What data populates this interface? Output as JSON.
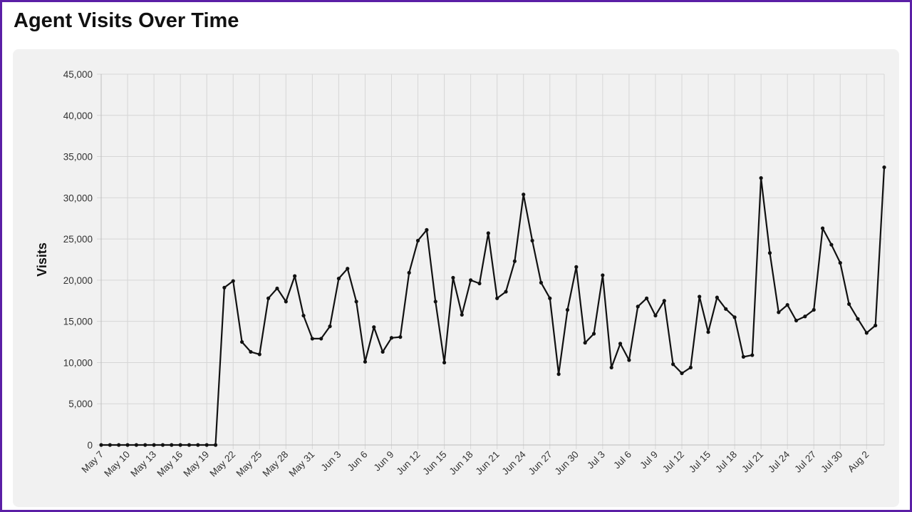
{
  "header": {
    "title": "Agent Visits Over Time"
  },
  "chart_data": {
    "type": "line",
    "title": "Agent Visits Over Time",
    "xlabel": "",
    "ylabel": "Visits",
    "ylim": [
      0,
      45000
    ],
    "yticks": [
      0,
      5000,
      10000,
      15000,
      20000,
      25000,
      30000,
      35000,
      40000,
      45000
    ],
    "ytick_labels": [
      "0",
      "5,000",
      "10,000",
      "15,000",
      "20,000",
      "25,000",
      "30,000",
      "35,000",
      "40,000",
      "45,000"
    ],
    "x_tick_labels": [
      "May 7",
      "May 10",
      "May 13",
      "May 16",
      "May 19",
      "May 22",
      "May 25",
      "May 28",
      "May 31",
      "Jun 3",
      "Jun 6",
      "Jun 9",
      "Jun 12",
      "Jun 15",
      "Jun 18",
      "Jun 21",
      "Jun 24",
      "Jun 27",
      "Jun 30",
      "Jul 3",
      "Jul 6",
      "Jul 9",
      "Jul 12",
      "Jul 15",
      "Jul 18",
      "Jul 21",
      "Jul 24",
      "Jul 27",
      "Jul 30",
      "Aug 2"
    ],
    "x_tick_every": 3,
    "grid": true,
    "line_color": "#111111",
    "series": [
      {
        "name": "Visits",
        "values": [
          0,
          0,
          0,
          0,
          0,
          0,
          0,
          0,
          0,
          0,
          0,
          0,
          0,
          0,
          19100,
          19900,
          12500,
          11300,
          11000,
          17800,
          19000,
          17400,
          20500,
          15700,
          12900,
          12900,
          14400,
          20200,
          21400,
          17400,
          10100,
          14300,
          11300,
          13000,
          13100,
          20900,
          24800,
          26100,
          17400,
          10000,
          20300,
          15800,
          20000,
          19600,
          25700,
          17800,
          18600,
          22300,
          30400,
          24800,
          19700,
          17800,
          8600,
          16400,
          21600,
          12400,
          13500,
          20600,
          9400,
          12300,
          10300,
          16800,
          17800,
          15700,
          17500,
          9800,
          8700,
          9400,
          18000,
          13700,
          17900,
          16500,
          15500,
          10700,
          10900,
          32400,
          23300,
          16100,
          17000,
          15100,
          15600,
          16400,
          26300,
          24300,
          22100,
          17100,
          15300,
          13600,
          14500,
          33700
        ]
      }
    ]
  }
}
